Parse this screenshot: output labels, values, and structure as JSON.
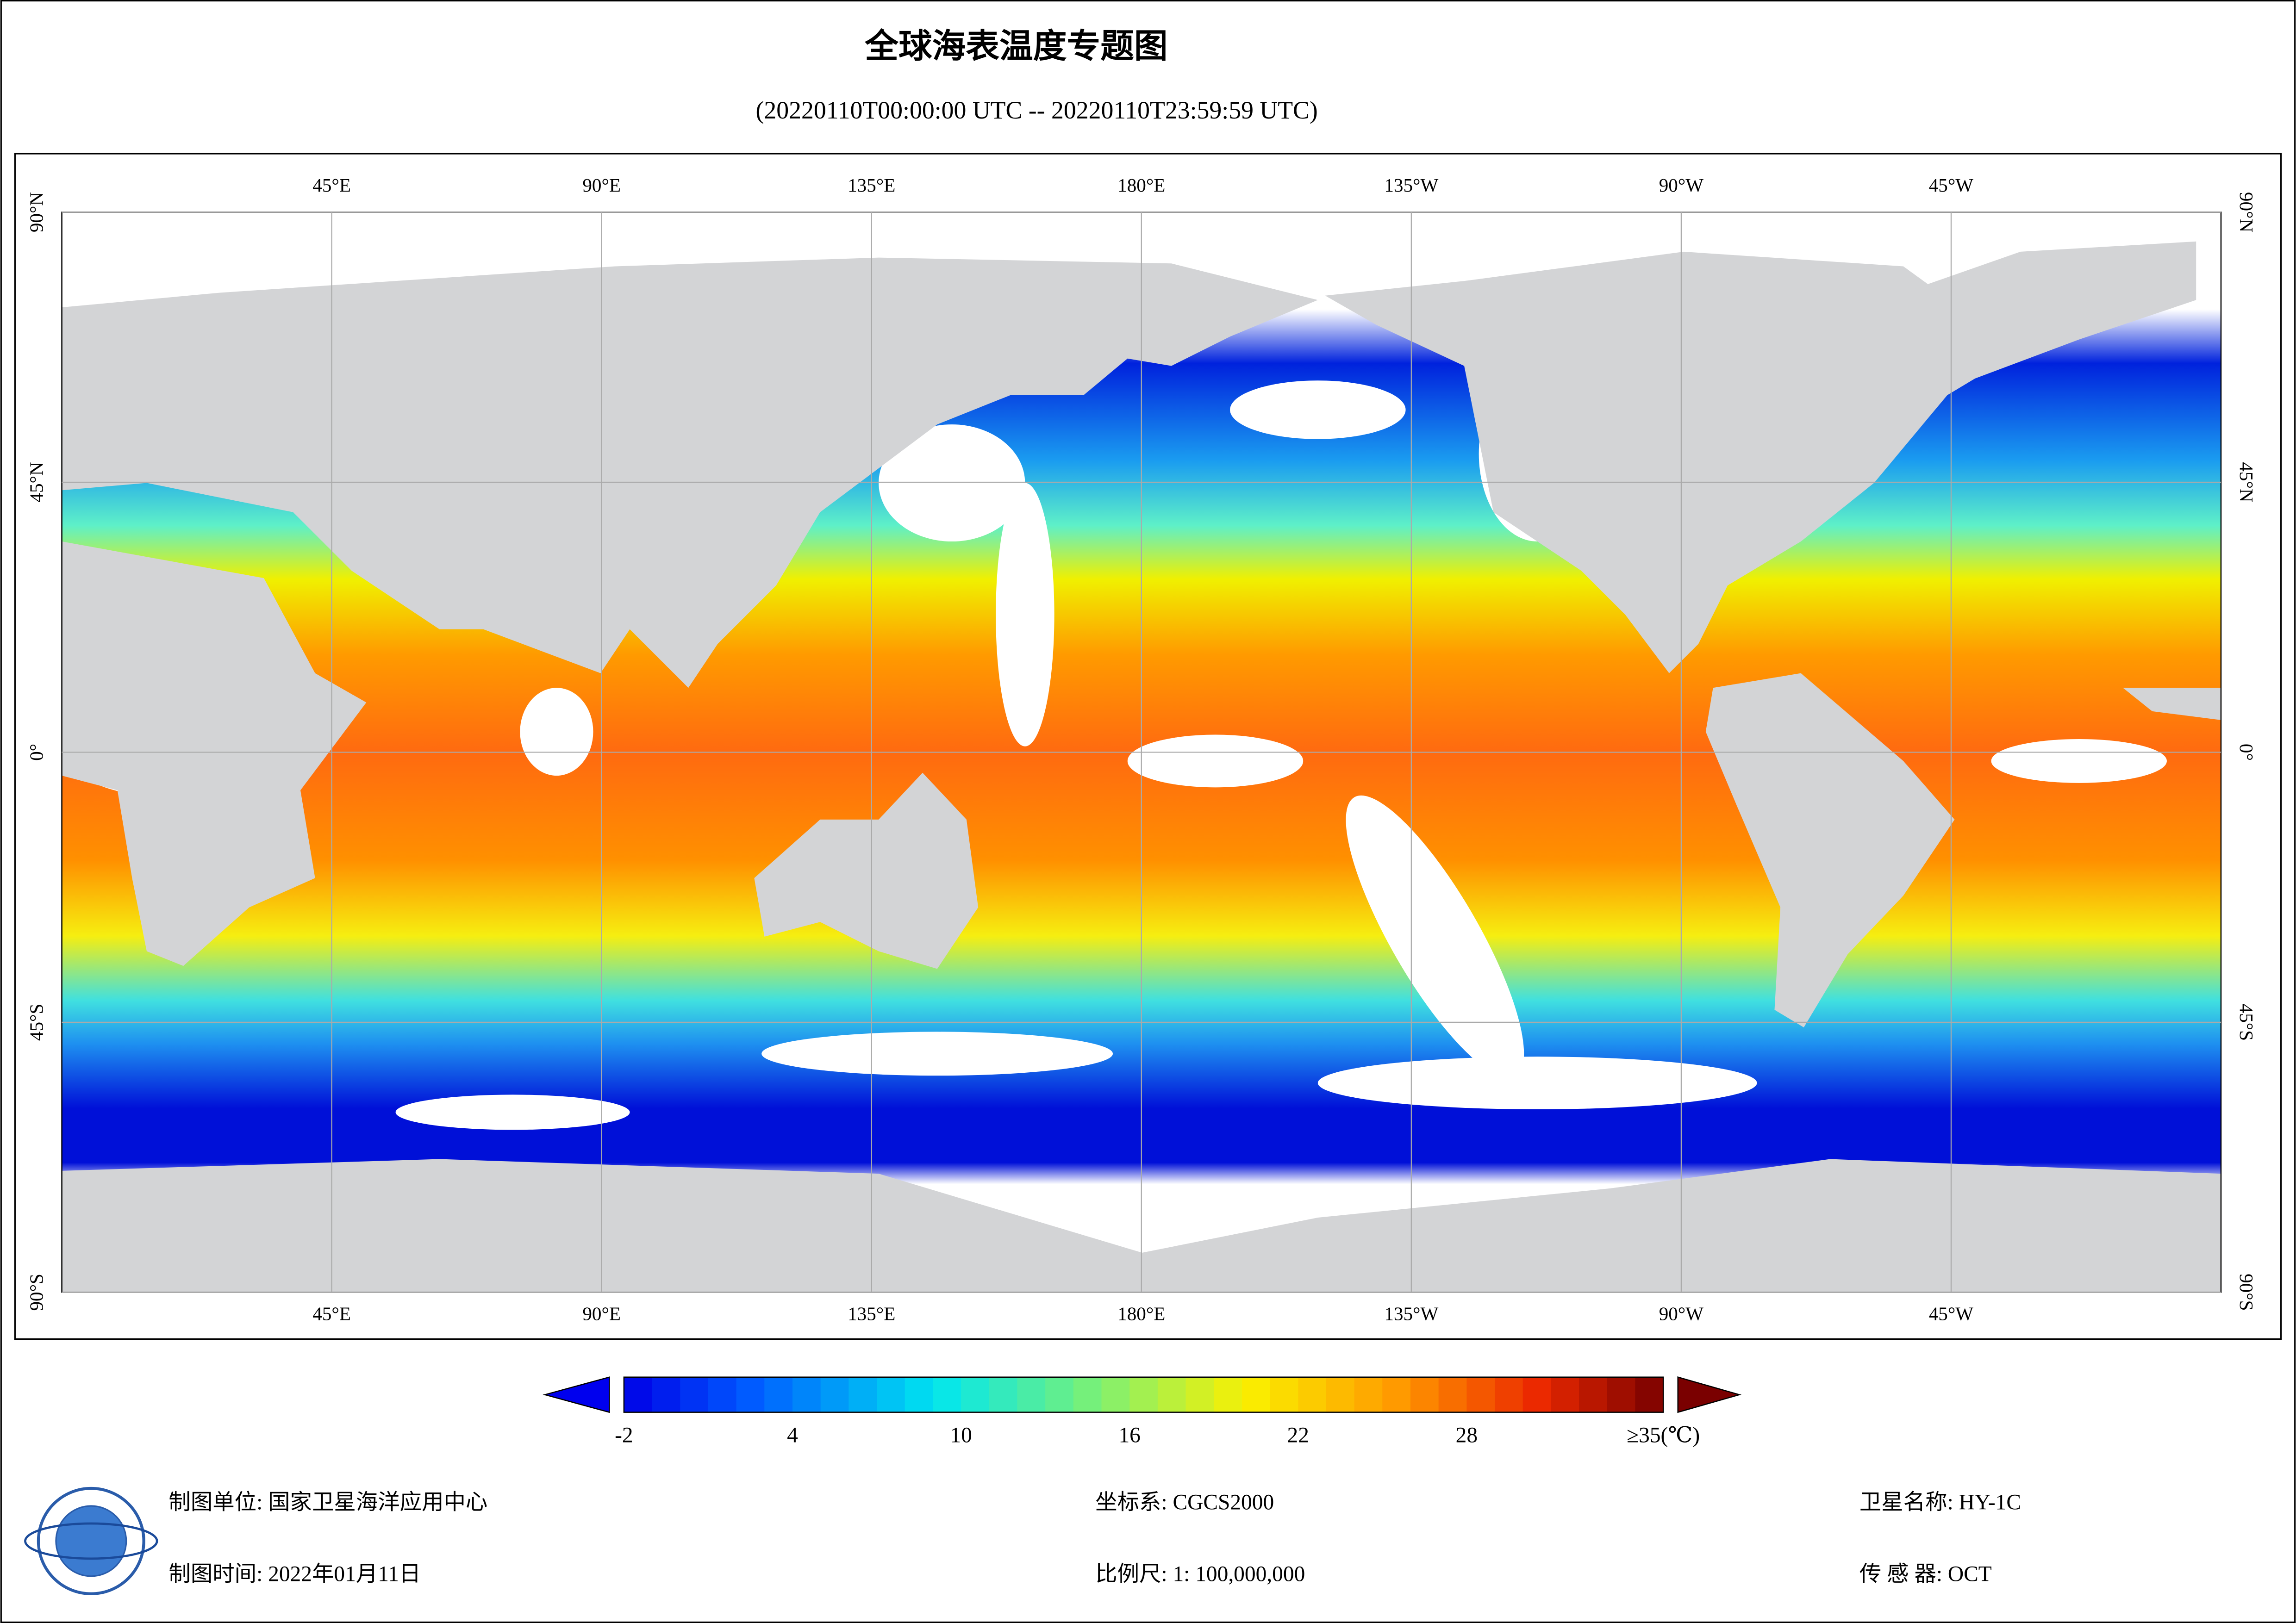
{
  "title": "全球海表温度专题图",
  "subtitle": "(20220110T00:00:00 UTC -- 20220110T23:59:59 UTC)",
  "map": {
    "lonlim": [
      0,
      360
    ],
    "latlim": [
      -90,
      90
    ],
    "lon_ticks": [
      {
        "value": 45,
        "label": "45°E"
      },
      {
        "value": 90,
        "label": "90°E"
      },
      {
        "value": 135,
        "label": "135°E"
      },
      {
        "value": 180,
        "label": "180°E"
      },
      {
        "value": 225,
        "label": "135°W"
      },
      {
        "value": 270,
        "label": "90°W"
      },
      {
        "value": 315,
        "label": "45°W"
      }
    ],
    "lat_ticks": [
      {
        "value": 90,
        "label": "90°N"
      },
      {
        "value": 45,
        "label": "45°N"
      },
      {
        "value": 0,
        "label": "0°"
      },
      {
        "value": -45,
        "label": "45°S"
      },
      {
        "value": -90,
        "label": "90°S"
      }
    ]
  },
  "colorbar": {
    "range": [
      -2,
      35
    ],
    "ticks": [
      -2,
      4,
      10,
      16,
      22,
      28,
      {
        "value": 35,
        "label": "≥35(℃)"
      }
    ]
  },
  "footer": {
    "unit": "制图单位: 国家卫星海洋应用中心",
    "time": "制图时间: 2022年01月11日",
    "crs": "坐标系: CGCS2000",
    "scale": "比例尺: 1: 100,000,000",
    "satellite": "卫星名称: HY-1C",
    "sensor": "传 感 器: OCT"
  }
}
